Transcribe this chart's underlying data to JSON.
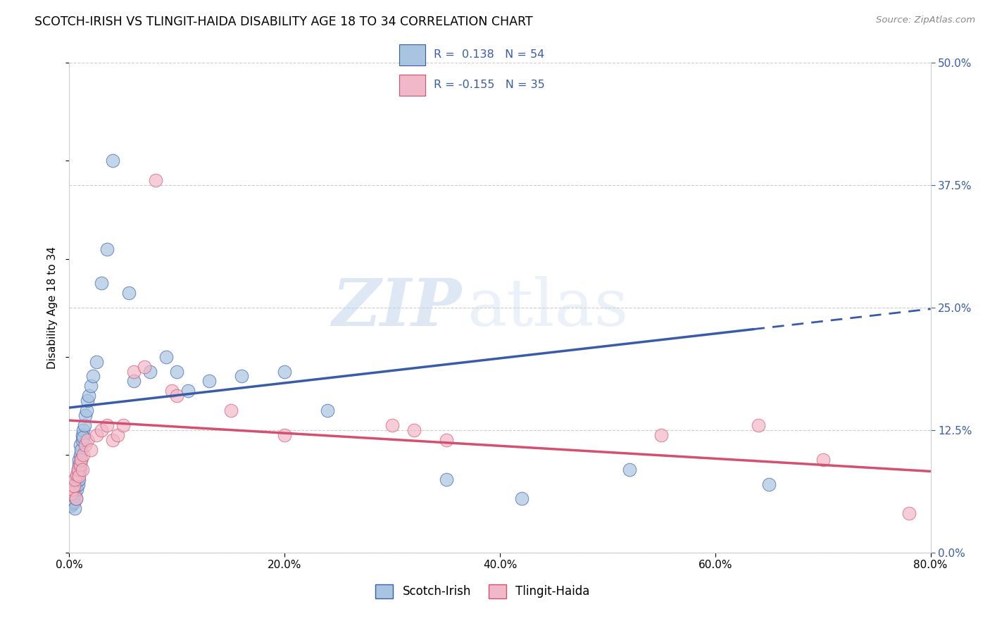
{
  "title": "SCOTCH-IRISH VS TLINGIT-HAIDA DISABILITY AGE 18 TO 34 CORRELATION CHART",
  "source": "Source: ZipAtlas.com",
  "ylabel": "Disability Age 18 to 34",
  "xlim": [
    0.0,
    0.8
  ],
  "ylim": [
    0.0,
    0.5
  ],
  "xticks": [
    0.0,
    0.2,
    0.4,
    0.6,
    0.8
  ],
  "yticks_right": [
    0.0,
    0.125,
    0.25,
    0.375,
    0.5
  ],
  "blue_scatter_color": "#a8c4e0",
  "pink_scatter_color": "#f0b8c8",
  "line_blue": "#3a5ca8",
  "line_pink": "#d45070",
  "legend_text_color": "#3a5ca8",
  "R_blue": 0.138,
  "N_blue": 54,
  "R_pink": -0.155,
  "N_pink": 35,
  "scotch_irish_x": [
    0.002,
    0.003,
    0.003,
    0.004,
    0.004,
    0.005,
    0.005,
    0.005,
    0.006,
    0.006,
    0.006,
    0.007,
    0.007,
    0.007,
    0.008,
    0.008,
    0.008,
    0.009,
    0.009,
    0.009,
    0.01,
    0.01,
    0.01,
    0.011,
    0.011,
    0.012,
    0.012,
    0.013,
    0.013,
    0.014,
    0.015,
    0.016,
    0.017,
    0.018,
    0.02,
    0.022,
    0.025,
    0.03,
    0.035,
    0.04,
    0.055,
    0.06,
    0.075,
    0.09,
    0.1,
    0.11,
    0.13,
    0.16,
    0.2,
    0.24,
    0.35,
    0.42,
    0.52,
    0.65
  ],
  "scotch_irish_y": [
    0.048,
    0.05,
    0.055,
    0.052,
    0.058,
    0.06,
    0.045,
    0.065,
    0.068,
    0.072,
    0.055,
    0.075,
    0.078,
    0.065,
    0.08,
    0.085,
    0.07,
    0.09,
    0.095,
    0.075,
    0.1,
    0.085,
    0.11,
    0.095,
    0.105,
    0.115,
    0.12,
    0.125,
    0.118,
    0.13,
    0.14,
    0.145,
    0.155,
    0.16,
    0.17,
    0.18,
    0.195,
    0.275,
    0.31,
    0.4,
    0.265,
    0.175,
    0.185,
    0.2,
    0.185,
    0.165,
    0.175,
    0.18,
    0.185,
    0.145,
    0.075,
    0.055,
    0.085,
    0.07
  ],
  "tlingit_haida_x": [
    0.002,
    0.003,
    0.004,
    0.005,
    0.006,
    0.007,
    0.008,
    0.009,
    0.01,
    0.011,
    0.012,
    0.013,
    0.015,
    0.017,
    0.02,
    0.025,
    0.03,
    0.035,
    0.04,
    0.045,
    0.05,
    0.06,
    0.07,
    0.08,
    0.095,
    0.1,
    0.15,
    0.2,
    0.3,
    0.32,
    0.35,
    0.55,
    0.64,
    0.7,
    0.78
  ],
  "tlingit_haida_y": [
    0.06,
    0.065,
    0.068,
    0.075,
    0.055,
    0.08,
    0.085,
    0.078,
    0.09,
    0.095,
    0.085,
    0.1,
    0.11,
    0.115,
    0.105,
    0.12,
    0.125,
    0.13,
    0.115,
    0.12,
    0.13,
    0.185,
    0.19,
    0.38,
    0.165,
    0.16,
    0.145,
    0.12,
    0.13,
    0.125,
    0.115,
    0.12,
    0.13,
    0.095,
    0.04
  ],
  "watermark_zip": "ZIP",
  "watermark_atlas": "atlas"
}
